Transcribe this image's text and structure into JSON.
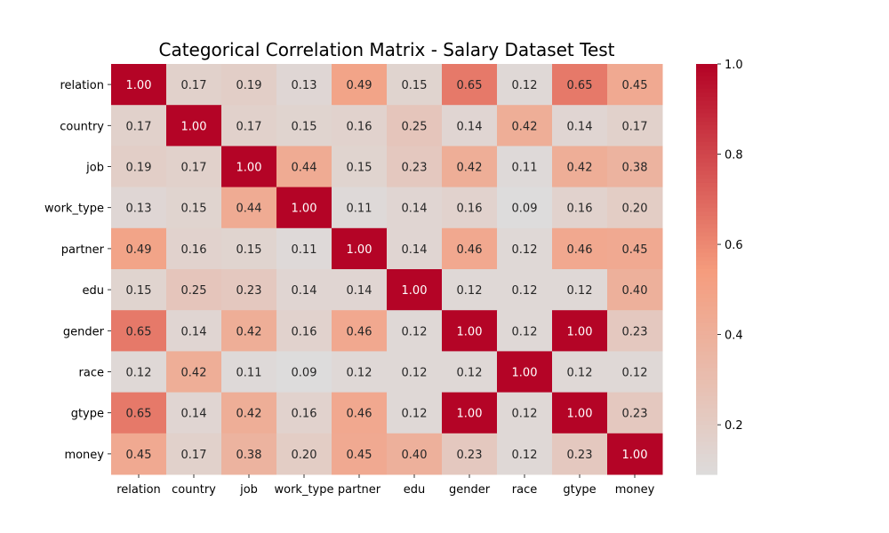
{
  "chart_data": {
    "type": "heatmap",
    "title": "Categorical Correlation Matrix - Salary Dataset Test",
    "rows": [
      "relation",
      "country",
      "job",
      "work_type",
      "partner",
      "edu",
      "gender",
      "race",
      "gtype",
      "money"
    ],
    "columns": [
      "relation",
      "country",
      "job",
      "work_type",
      "partner",
      "edu",
      "gender",
      "race",
      "gtype",
      "money"
    ],
    "values": [
      [
        1.0,
        0.17,
        0.19,
        0.13,
        0.49,
        0.15,
        0.65,
        0.12,
        0.65,
        0.45
      ],
      [
        0.17,
        1.0,
        0.17,
        0.15,
        0.16,
        0.25,
        0.14,
        0.42,
        0.14,
        0.17
      ],
      [
        0.19,
        0.17,
        1.0,
        0.44,
        0.15,
        0.23,
        0.42,
        0.11,
        0.42,
        0.38
      ],
      [
        0.13,
        0.15,
        0.44,
        1.0,
        0.11,
        0.14,
        0.16,
        0.09,
        0.16,
        0.2
      ],
      [
        0.49,
        0.16,
        0.15,
        0.11,
        1.0,
        0.14,
        0.46,
        0.12,
        0.46,
        0.45
      ],
      [
        0.15,
        0.25,
        0.23,
        0.14,
        0.14,
        1.0,
        0.12,
        0.12,
        0.12,
        0.4
      ],
      [
        0.65,
        0.14,
        0.42,
        0.16,
        0.46,
        0.12,
        1.0,
        0.12,
        1.0,
        0.23
      ],
      [
        0.12,
        0.42,
        0.11,
        0.09,
        0.12,
        0.12,
        0.12,
        1.0,
        0.12,
        0.12
      ],
      [
        0.65,
        0.14,
        0.42,
        0.16,
        0.46,
        0.12,
        1.0,
        0.12,
        1.0,
        0.23
      ],
      [
        0.45,
        0.17,
        0.38,
        0.2,
        0.45,
        0.4,
        0.23,
        0.12,
        0.23,
        1.0
      ]
    ],
    "value_format": "0.00",
    "colormap": "coolwarm",
    "color_range": [
      0.09,
      1.0
    ],
    "colorbar_ticks": [
      "0.2",
      "0.4",
      "0.6",
      "0.8",
      "1.0"
    ],
    "colorbar_tick_values": [
      0.2,
      0.4,
      0.6,
      0.8,
      1.0
    ]
  }
}
